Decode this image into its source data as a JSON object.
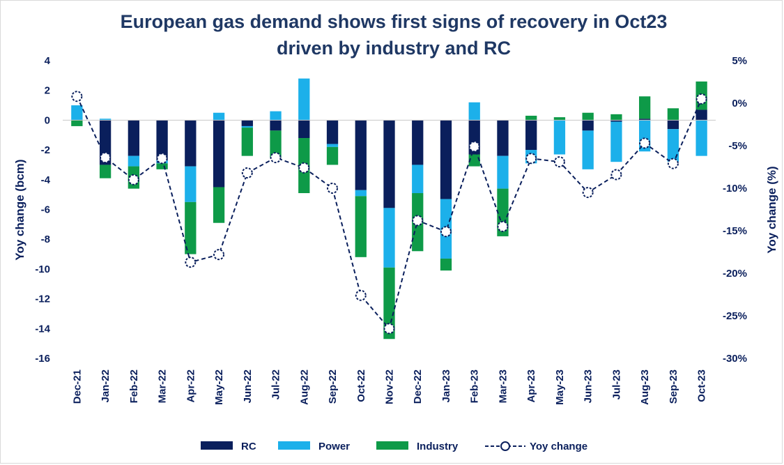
{
  "chart_data": {
    "type": "bar+line",
    "title_line1": "European gas demand shows first signs of recovery in Oct23",
    "title_line2": "driven by industry and RC",
    "ylabel": "Yoy change (bcm)",
    "y2label": "Yoy change (%)",
    "ylim": [
      -16,
      4
    ],
    "y2lim": [
      -30,
      5
    ],
    "yticks": [
      "4",
      "2",
      "0",
      "-2",
      "-4",
      "-6",
      "-8",
      "-10",
      "-12",
      "-14",
      "-16"
    ],
    "ytick_values": [
      4,
      2,
      0,
      -2,
      -4,
      -6,
      -8,
      -10,
      -12,
      -14,
      -16
    ],
    "y2ticks": [
      "5%",
      "0%",
      "-5%",
      "-10%",
      "-15%",
      "-20%",
      "-25%",
      "-30%"
    ],
    "y2tick_values": [
      5,
      0,
      -5,
      -10,
      -15,
      -20,
      -25,
      -30
    ],
    "categories": [
      "Dec-21",
      "Jan-22",
      "Feb-22",
      "Mar-22",
      "Apr-22",
      "May-22",
      "Jun-22",
      "Jul-22",
      "Aug-22",
      "Sep-22",
      "Oct-22",
      "Nov-22",
      "Dec-22",
      "Jan-23",
      "Feb-23",
      "Mar-23",
      "Apr-23",
      "May-23",
      "Jun-23",
      "Jul-23",
      "Aug-23",
      "Sep-23",
      "Oct-23"
    ],
    "series": [
      {
        "name": "RC",
        "color": "#0a1f5c",
        "type": "bar",
        "values": [
          0.0,
          -3.0,
          -2.4,
          -2.7,
          -3.1,
          -4.5,
          -0.4,
          -0.7,
          -1.2,
          -1.6,
          -4.7,
          -5.9,
          -3.0,
          -5.3,
          -2.3,
          -2.4,
          -2.0,
          0.0,
          -0.7,
          -0.1,
          0.1,
          -0.6,
          0.7
        ]
      },
      {
        "name": "Power",
        "color": "#1cb0ea",
        "type": "bar",
        "values": [
          1.0,
          0.1,
          -0.7,
          -0.2,
          -2.4,
          0.5,
          -0.1,
          0.6,
          2.8,
          -0.2,
          -0.4,
          -4.0,
          -1.9,
          -4.0,
          1.2,
          -2.2,
          -0.9,
          -2.3,
          -2.6,
          -2.7,
          -2.1,
          -2.2,
          -2.4
        ]
      },
      {
        "name": "Industry",
        "color": "#0e9a48",
        "type": "bar",
        "values": [
          -0.4,
          -0.9,
          -1.5,
          -0.4,
          -3.5,
          -2.4,
          -1.9,
          -1.8,
          -3.7,
          -1.2,
          -4.1,
          -4.8,
          -3.9,
          -0.8,
          -0.8,
          -3.2,
          0.3,
          0.2,
          0.5,
          0.4,
          1.5,
          0.8,
          1.9
        ]
      },
      {
        "name": "Yoy change",
        "color": "#0a1f5c",
        "type": "line",
        "axis": "secondary",
        "values": [
          0.8,
          -6.4,
          -9.0,
          -6.5,
          -18.7,
          -17.8,
          -8.2,
          -6.4,
          -7.6,
          -10.0,
          -22.6,
          -26.5,
          -13.8,
          -15.1,
          -5.1,
          -14.5,
          -6.5,
          -6.9,
          -10.5,
          -8.4,
          -4.7,
          -7.1,
          0.5
        ]
      }
    ],
    "legend": [
      "RC",
      "Power",
      "Industry",
      "Yoy change"
    ],
    "legend_position": "bottom"
  }
}
